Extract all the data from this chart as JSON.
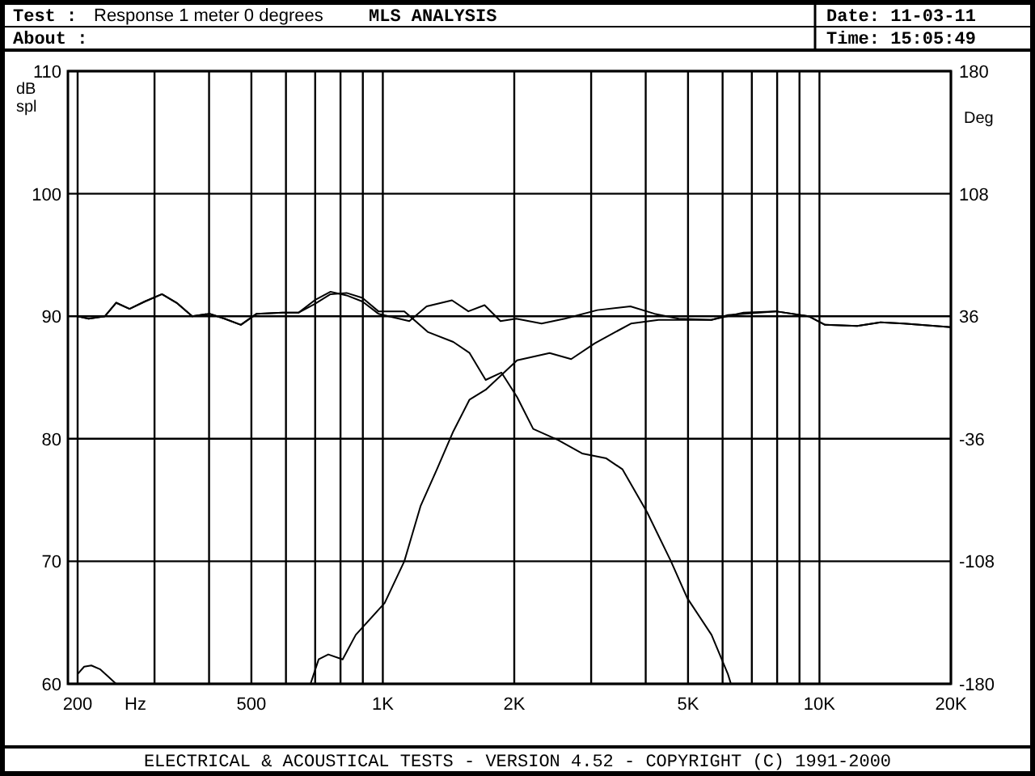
{
  "chart_data": {
    "type": "line",
    "title": "MLS ANALYSIS",
    "xlabel": "Hz",
    "ylabel": "dB spl",
    "y2label": "Deg",
    "annotations": [
      "Test :",
      "Response 1 meter 0 degrees",
      "About :",
      "Date: 11-03-11",
      "Time: 15:05:49",
      "ELECTRICAL & ACOUSTICAL TESTS - VERSION 4.52 - COPYRIGHT (C) 1991-2000"
    ],
    "log": "x",
    "grid": true,
    "line_style": "solid",
    "xlim": [
      200,
      20000
    ],
    "ylim": [
      60,
      110
    ],
    "y2lim": [
      -180,
      180
    ],
    "xticks": [
      200,
      {
        "value": 300,
        "label": null
      },
      {
        "value": 400,
        "label": null
      },
      500,
      {
        "value": 600,
        "label": null
      },
      {
        "value": 700,
        "label": null
      },
      {
        "value": 800,
        "label": null
      },
      {
        "value": 900,
        "label": null
      },
      {
        "value": 1000,
        "label": "1K"
      },
      {
        "value": 2000,
        "label": "2K"
      },
      {
        "value": 3000,
        "label": null
      },
      {
        "value": 4000,
        "label": null
      },
      {
        "value": 5000,
        "label": "5K"
      },
      {
        "value": 6000,
        "label": null
      },
      {
        "value": 7000,
        "label": null
      },
      {
        "value": 8000,
        "label": null
      },
      {
        "value": 9000,
        "label": null
      },
      {
        "value": 10000,
        "label": "10K"
      },
      {
        "value": 20000,
        "label": "20K"
      }
    ],
    "yticks": [
      60,
      70,
      80,
      90,
      100,
      110
    ],
    "y2ticks": [
      180,
      108,
      36,
      -36,
      -108,
      -180
    ],
    "series": [
      {
        "color": "#000000",
        "x": [
          200,
          212,
          231,
          245,
          263,
          285,
          312,
          337,
          366,
          401,
          434,
          473,
          514,
          590,
          642,
          698,
          759,
          826,
          898,
          977,
          1060,
          1150,
          1260,
          1440,
          1570,
          1710,
          1860,
          2020,
          2310,
          2610,
          3100,
          3690,
          4190,
          4760,
          5650,
          6700,
          7950,
          9440,
          10300,
          12200,
          13800,
          15600,
          20000
        ],
        "values": [
          90,
          89.8,
          90,
          91.1,
          90.6,
          91.2,
          91.8,
          91.1,
          90,
          90.2,
          89.8,
          89.3,
          90.2,
          90.3,
          90.3,
          91.3,
          92,
          91.7,
          91.2,
          90.2,
          89.9,
          89.6,
          90.8,
          91.3,
          90.4,
          90.9,
          89.6,
          89.8,
          89.4,
          89.8,
          90.5,
          90.8,
          90.2,
          89.8,
          89.7,
          90.3,
          90.4,
          90,
          89.3,
          89.2,
          89.5,
          89.4,
          89.1
        ]
      },
      {
        "color": "#000000",
        "x": [
          200,
          212,
          231,
          245,
          263,
          285,
          312,
          337,
          366,
          401,
          434,
          473,
          514,
          590,
          642,
          698,
          759,
          826,
          898,
          977,
          1120,
          1270,
          1450,
          1580,
          1720,
          1870,
          2030,
          2210,
          2520,
          2860,
          3250,
          3540,
          4030,
          4570,
          4980,
          5660,
          6170,
          6270
        ],
        "values": [
          90,
          89.8,
          90,
          91.1,
          90.6,
          91.2,
          91.8,
          91.1,
          90,
          90.2,
          89.8,
          89.3,
          90.2,
          90.3,
          90.3,
          91,
          91.8,
          91.9,
          91.5,
          90.4,
          90.4,
          88.7,
          87.9,
          87,
          84.8,
          85.4,
          83.4,
          80.8,
          79.9,
          78.8,
          78.4,
          77.5,
          74,
          70,
          67,
          64,
          60.8,
          60
        ]
      },
      {
        "color": "#000000",
        "x": [
          683,
          713,
          750,
          809,
          867,
          1010,
          1120,
          1220,
          1330,
          1450,
          1580,
          1720,
          2030,
          2410,
          2700,
          3060,
          3700,
          4280,
          5660,
          6170,
          7950,
          9440,
          10300,
          12200,
          13800,
          15600,
          20000
        ],
        "values": [
          60,
          62,
          62.4,
          62,
          64,
          66.6,
          70,
          74.5,
          77.5,
          80.6,
          83.2,
          84,
          86.4,
          87,
          86.5,
          87.8,
          89.4,
          89.7,
          89.7,
          90.1,
          90.4,
          90,
          89.3,
          89.2,
          89.5,
          89.4,
          89.1
        ]
      },
      {
        "color": "#000000",
        "x": [
          200,
          207,
          215,
          225,
          235,
          245
        ],
        "values": [
          60.8,
          61.4,
          61.5,
          61.2,
          60.6,
          60
        ]
      }
    ]
  }
}
